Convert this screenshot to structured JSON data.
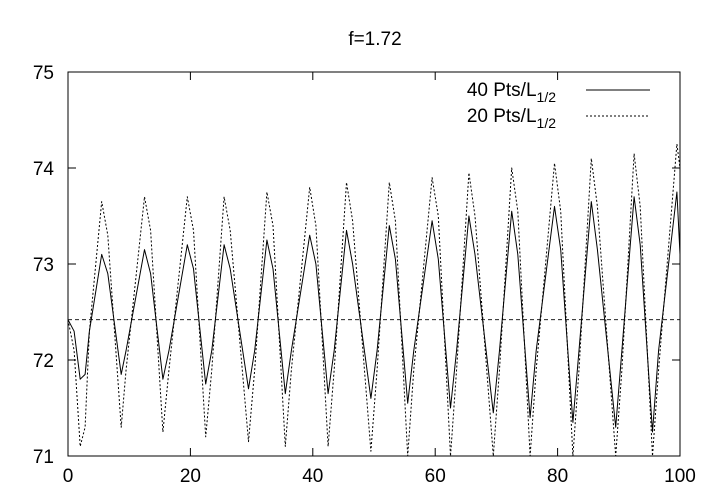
{
  "chart_data": {
    "type": "line",
    "title": "f=1.72",
    "xlabel": "",
    "ylabel": "",
    "xlim": [
      0,
      100
    ],
    "ylim": [
      71,
      75
    ],
    "x_ticks": [
      "0",
      "20",
      "40",
      "60",
      "80",
      "100"
    ],
    "y_ticks": [
      "71",
      "72",
      "73",
      "74",
      "75"
    ],
    "grid": false,
    "legend_position": "top-right",
    "reference_line": {
      "y": 72.42,
      "style": "dashed"
    },
    "series": [
      {
        "name": "40 Pts/L",
        "name_subscript": "1/2",
        "style": "solid",
        "color": "#000000",
        "x": [
          0,
          1,
          2,
          2.8,
          3.5,
          5.5,
          6.5,
          8.7,
          9.5,
          12.5,
          13.5,
          15.5,
          16.5,
          19.5,
          20.5,
          22.5,
          23.5,
          25.5,
          26.5,
          29.5,
          30.5,
          32.5,
          33.5,
          35.5,
          36.5,
          39.5,
          40.5,
          42.5,
          43.5,
          45.5,
          46.5,
          49.5,
          50.5,
          52.5,
          53.5,
          55.5,
          56.5,
          59.5,
          60.5,
          62.5,
          63.5,
          65.5,
          66.5,
          69.5,
          70.5,
          72.5,
          73.5,
          75.5,
          76.5,
          79.5,
          80.5,
          82.5,
          83.5,
          85.5,
          86.5,
          89.5,
          90.5,
          92.5,
          93.5,
          95.5,
          96.5,
          99.5,
          100
        ],
        "y": [
          72.42,
          72.3,
          71.8,
          71.85,
          72.3,
          73.1,
          72.9,
          71.85,
          72.1,
          73.15,
          72.9,
          71.8,
          72.1,
          73.2,
          72.95,
          71.75,
          72.1,
          73.2,
          72.95,
          71.7,
          72.1,
          73.25,
          72.95,
          71.65,
          72.1,
          73.3,
          73.0,
          71.65,
          72.1,
          73.35,
          73.0,
          71.6,
          72.1,
          73.4,
          73.05,
          71.55,
          72.1,
          73.45,
          73.05,
          71.5,
          72.1,
          73.5,
          73.1,
          71.45,
          72.1,
          73.55,
          73.1,
          71.4,
          72.1,
          73.6,
          73.15,
          71.35,
          72.1,
          73.65,
          73.15,
          71.3,
          72.1,
          73.7,
          73.2,
          71.25,
          72.1,
          73.75,
          73.1
        ]
      },
      {
        "name": "20 Pts/L",
        "name_subscript": "1/2",
        "style": "dotted",
        "color": "#000000",
        "x": [
          0,
          1,
          2,
          2.8,
          3.5,
          5.5,
          6.5,
          8.7,
          9.5,
          12.5,
          13.5,
          15.5,
          16.5,
          19.5,
          20.5,
          22.5,
          23.5,
          25.5,
          26.5,
          29.5,
          30.5,
          32.5,
          33.5,
          35.5,
          36.5,
          39.5,
          40.5,
          42.5,
          43.5,
          45.5,
          46.5,
          49.5,
          50.5,
          52.5,
          53.5,
          55.5,
          56.5,
          59.5,
          60.5,
          62.5,
          63.5,
          65.5,
          66.5,
          69.5,
          70.5,
          72.5,
          73.5,
          75.5,
          76.5,
          79.5,
          80.5,
          82.5,
          83.5,
          85.5,
          86.5,
          89.5,
          90.5,
          92.5,
          93.5,
          95.5,
          96.5,
          99.5,
          100
        ],
        "y": [
          72.42,
          72.1,
          71.1,
          71.3,
          72.3,
          73.65,
          73.3,
          71.3,
          71.9,
          73.7,
          73.35,
          71.25,
          71.9,
          73.7,
          73.35,
          71.2,
          71.9,
          73.7,
          73.35,
          71.15,
          71.9,
          73.75,
          73.4,
          71.1,
          71.9,
          73.8,
          73.4,
          71.1,
          71.9,
          73.85,
          73.45,
          71.05,
          71.9,
          73.85,
          73.45,
          71.0,
          71.9,
          73.9,
          73.5,
          71.0,
          71.9,
          73.95,
          73.5,
          70.95,
          71.9,
          74.0,
          73.55,
          70.9,
          71.9,
          74.05,
          73.55,
          70.85,
          71.9,
          74.1,
          73.6,
          70.85,
          71.9,
          74.15,
          73.6,
          70.8,
          71.9,
          74.25,
          74.0
        ]
      }
    ]
  }
}
